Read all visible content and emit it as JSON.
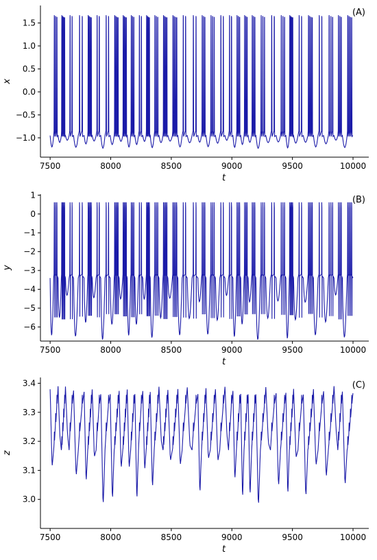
{
  "chart_data": [
    {
      "type": "line",
      "panel_label": "(A)",
      "xlabel": "t",
      "ylabel": "x",
      "xlim": [
        7420,
        10130
      ],
      "ylim": [
        -1.42,
        1.88
      ],
      "xticks": [
        7500,
        8000,
        8500,
        9000,
        9500,
        10000
      ],
      "yticks": [
        -1.0,
        -0.5,
        0.0,
        0.5,
        1.0,
        1.5
      ],
      "ytick_labels": [
        "−1.0",
        "−0.5",
        "0.0",
        "0.5",
        "1.0",
        "1.5"
      ],
      "series_color": "#1a1aa8",
      "peak_value": 1.67,
      "baseline_value": -0.95,
      "trough_values": [
        -1.18,
        -1.1,
        -1.05
      ],
      "burst_period": 72,
      "grid": false
    },
    {
      "type": "line",
      "panel_label": "(B)",
      "xlabel": "t",
      "ylabel": "y",
      "xlim": [
        7420,
        10130
      ],
      "ylim": [
        -6.75,
        1.05
      ],
      "xticks": [
        7500,
        8000,
        8500,
        9000,
        9500,
        10000
      ],
      "yticks": [
        -6,
        -5,
        -4,
        -3,
        -2,
        -1,
        0,
        1
      ],
      "ytick_labels": [
        "−6",
        "−5",
        "−4",
        "−3",
        "−2",
        "−1",
        "0",
        "1"
      ],
      "series_color": "#1a1aa8",
      "peak_value": 0.62,
      "spike_floor_value": -5.6,
      "trough_values": [
        -6.3,
        -5.5,
        -4.3
      ],
      "burst_period": 72,
      "grid": false
    },
    {
      "type": "line",
      "panel_label": "(C)",
      "xlabel": "t",
      "ylabel": "z",
      "xlim": [
        7420,
        10130
      ],
      "ylim": [
        2.9,
        3.42
      ],
      "xticks": [
        7500,
        8000,
        8500,
        9000,
        9500,
        10000
      ],
      "yticks": [
        3.0,
        3.1,
        3.2,
        3.3,
        3.4
      ],
      "ytick_labels": [
        "3.0",
        "3.1",
        "3.2",
        "3.3",
        "3.4"
      ],
      "series_color": "#1a1aa8",
      "max_value": 3.39,
      "min_value": 2.95,
      "burst_period": 72,
      "grid": false
    }
  ]
}
